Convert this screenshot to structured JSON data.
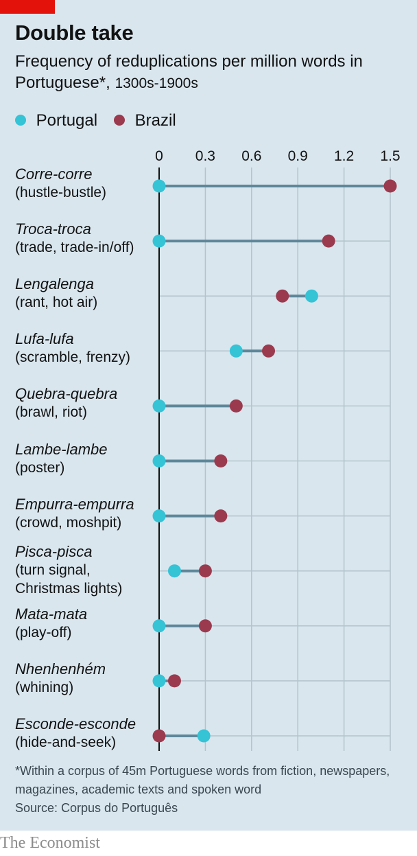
{
  "header": {
    "title": "Double take",
    "subtitle": "Frequency of reduplications per million words in Portuguese*,",
    "subtitle_unit": "1300s-1900s"
  },
  "legend": [
    {
      "label": "Portugal",
      "color": "#35c3d6"
    },
    {
      "label": "Brazil",
      "color": "#9b3a4e"
    }
  ],
  "colors": {
    "portugal": "#35c3d6",
    "brazil": "#9b3a4e",
    "connector": "#5e8799",
    "gridline": "#b4c3cc",
    "zero_line": "#121212",
    "background": "#d9e6ee",
    "brand_red": "#e3120b"
  },
  "chart_data": {
    "type": "dumbbell",
    "x_ticks": [
      "0",
      "0.3",
      "0.6",
      "0.9",
      "1.2",
      "1.5"
    ],
    "xlim": [
      0,
      1.5
    ],
    "grid": true,
    "legend_position": "top-left",
    "series": [
      {
        "name": "Portugal",
        "values": [
          0,
          0,
          0.99,
          0.5,
          0,
          0,
          0,
          0.1,
          0,
          0,
          0.29
        ]
      },
      {
        "name": "Brazil",
        "values": [
          1.5,
          1.1,
          0.8,
          0.71,
          0.5,
          0.4,
          0.4,
          0.3,
          0.3,
          0.1,
          0
        ]
      }
    ],
    "categories": [
      {
        "name": "Corre-corre",
        "gloss": [
          "(hustle-bustle)"
        ]
      },
      {
        "name": "Troca-troca",
        "gloss": [
          "(trade, trade-in/off)"
        ]
      },
      {
        "name": "Lengalenga",
        "gloss": [
          "(rant, hot air)"
        ]
      },
      {
        "name": "Lufa-lufa",
        "gloss": [
          "(scramble, frenzy)"
        ]
      },
      {
        "name": "Quebra-quebra",
        "gloss": [
          "(brawl, riot)"
        ]
      },
      {
        "name": "Lambe-lambe",
        "gloss": [
          "(poster)"
        ]
      },
      {
        "name": "Empurra-empurra",
        "gloss": [
          "(crowd, moshpit)"
        ]
      },
      {
        "name": "Pisca-pisca",
        "gloss": [
          "(turn signal,",
          "Christmas lights)"
        ]
      },
      {
        "name": "Mata-mata",
        "gloss": [
          "(play-off)"
        ]
      },
      {
        "name": "Nhenhenhém",
        "gloss": [
          "(whining)"
        ]
      },
      {
        "name": "Esconde-esconde",
        "gloss": [
          "(hide-and-seek)"
        ]
      }
    ]
  },
  "footnote": {
    "note": "*Within a corpus of 45m Portuguese words from fiction, newspapers, magazines, academic texts and spoken word",
    "source": "Source: Corpus do Português"
  },
  "brand": "The Economist"
}
